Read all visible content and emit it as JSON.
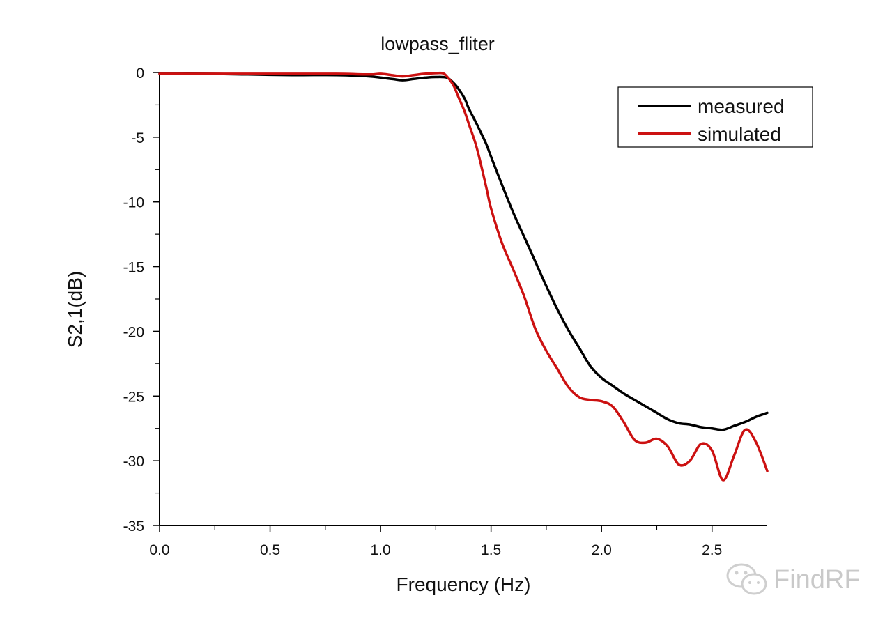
{
  "chart_data": {
    "type": "line",
    "title": "lowpass_fliter",
    "xlabel": "Frequency (Hz)",
    "ylabel": "S2,1(dB)",
    "xlim": [
      0,
      2.75
    ],
    "ylim": [
      -35,
      0
    ],
    "xticks": [
      0.0,
      0.5,
      1.0,
      1.5,
      2.0,
      2.5
    ],
    "xtick_labels": [
      "0.0",
      "0.5",
      "1.0",
      "1.5",
      "2.0",
      "2.5"
    ],
    "yticks": [
      0,
      -5,
      -10,
      -15,
      -20,
      -25,
      -30,
      -35
    ],
    "ytick_labels": [
      "0",
      "-5",
      "-10",
      "-15",
      "-20",
      "-25",
      "-30",
      "-35"
    ],
    "legend_position": "top-right",
    "grid": false,
    "series": [
      {
        "name": "measured",
        "color": "#000000",
        "x": [
          0,
          0.2,
          0.4,
          0.6,
          0.8,
          0.95,
          1.05,
          1.1,
          1.15,
          1.2,
          1.25,
          1.3,
          1.33,
          1.35,
          1.38,
          1.4,
          1.43,
          1.45,
          1.48,
          1.5,
          1.55,
          1.6,
          1.65,
          1.7,
          1.75,
          1.8,
          1.85,
          1.9,
          1.95,
          2.0,
          2.05,
          2.1,
          2.15,
          2.2,
          2.25,
          2.3,
          2.35,
          2.4,
          2.45,
          2.5,
          2.55,
          2.6,
          2.65,
          2.7,
          2.75
        ],
        "y": [
          -0.1,
          -0.1,
          -0.15,
          -0.2,
          -0.2,
          -0.3,
          -0.5,
          -0.6,
          -0.5,
          -0.4,
          -0.35,
          -0.4,
          -0.8,
          -1.2,
          -2.0,
          -2.8,
          -3.8,
          -4.5,
          -5.6,
          -6.5,
          -8.7,
          -10.8,
          -12.7,
          -14.6,
          -16.5,
          -18.3,
          -19.9,
          -21.3,
          -22.7,
          -23.6,
          -24.2,
          -24.8,
          -25.3,
          -25.8,
          -26.3,
          -26.8,
          -27.1,
          -27.2,
          -27.4,
          -27.5,
          -27.6,
          -27.3,
          -27.0,
          -26.6,
          -26.3
        ]
      },
      {
        "name": "simulated",
        "color": "#cc1111",
        "x": [
          0,
          0.2,
          0.4,
          0.6,
          0.8,
          0.95,
          1.0,
          1.05,
          1.1,
          1.15,
          1.2,
          1.25,
          1.28,
          1.3,
          1.33,
          1.35,
          1.38,
          1.4,
          1.43,
          1.45,
          1.48,
          1.5,
          1.55,
          1.6,
          1.65,
          1.7,
          1.75,
          1.8,
          1.85,
          1.9,
          1.95,
          2.0,
          2.05,
          2.1,
          2.15,
          2.2,
          2.25,
          2.3,
          2.35,
          2.4,
          2.45,
          2.5,
          2.55,
          2.6,
          2.65,
          2.7,
          2.75
        ],
        "y": [
          -0.1,
          -0.1,
          -0.1,
          -0.1,
          -0.1,
          -0.15,
          -0.1,
          -0.2,
          -0.3,
          -0.2,
          -0.1,
          -0.05,
          -0.05,
          -0.3,
          -1.0,
          -1.8,
          -3.0,
          -4.0,
          -5.5,
          -6.8,
          -9.0,
          -10.5,
          -13.2,
          -15.2,
          -17.3,
          -19.8,
          -21.5,
          -22.9,
          -24.3,
          -25.1,
          -25.3,
          -25.4,
          -25.8,
          -27.0,
          -28.4,
          -28.6,
          -28.3,
          -28.9,
          -30.3,
          -30.0,
          -28.7,
          -29.2,
          -31.5,
          -29.6,
          -27.6,
          -28.6,
          -30.8
        ]
      }
    ]
  },
  "watermark": {
    "text": "FindRF",
    "icon": "wechat-icon"
  }
}
